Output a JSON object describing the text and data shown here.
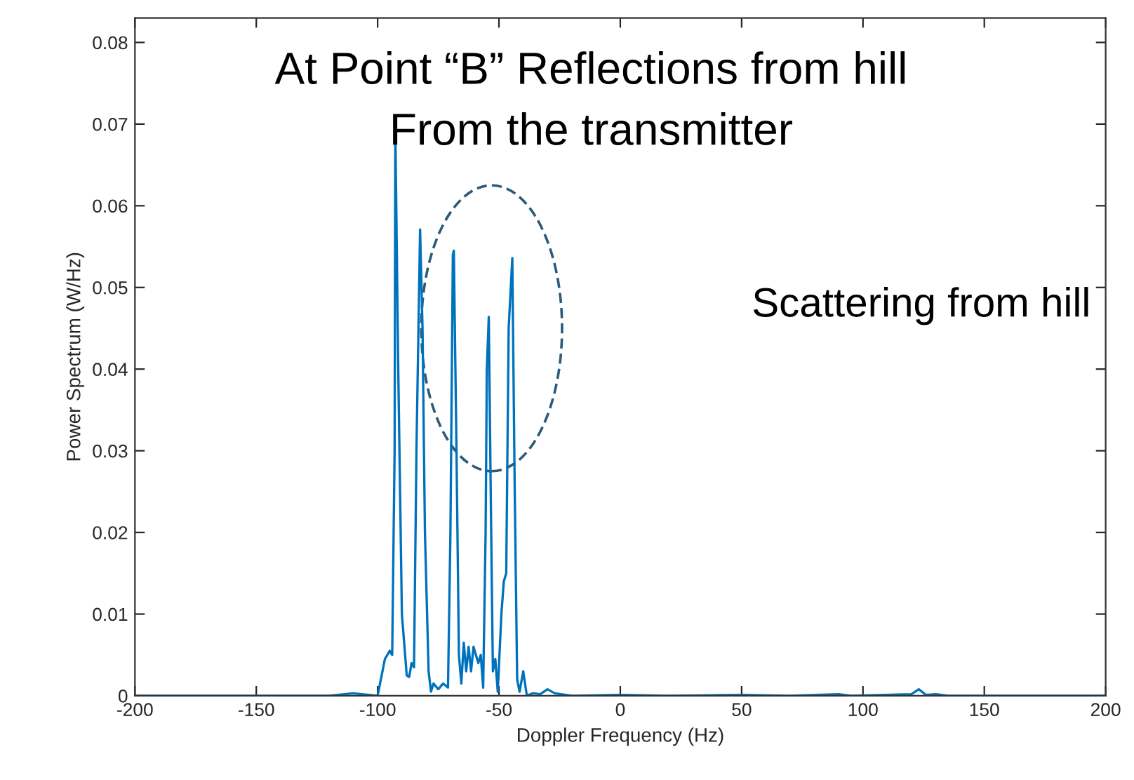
{
  "chart_data": {
    "type": "line",
    "xlabel": "Doppler Frequency (Hz)",
    "ylabel": "Power Spectrum (W/Hz)",
    "xlim": [
      -200,
      200
    ],
    "ylim": [
      0,
      0.083
    ],
    "xticks": [
      -200,
      -150,
      -100,
      -50,
      0,
      50,
      100,
      150,
      200
    ],
    "yticks": [
      0,
      0.01,
      0.02,
      0.03,
      0.04,
      0.05,
      0.06,
      0.07,
      0.08
    ],
    "grid": false,
    "legend": false,
    "annotations": [
      "At Point “B” Reflections from hill",
      "From the transmitter",
      "Scattering from hill"
    ],
    "series": [
      {
        "color": "#0072bd",
        "x": [
          -200,
          -120,
          -110,
          -100,
          -97,
          -95,
          -94,
          -93,
          -92.7,
          -91.5,
          -90,
          -88,
          -87,
          -86,
          -85,
          -84,
          -82.5,
          -81.5,
          -80.5,
          -79,
          -78,
          -77,
          -75,
          -73,
          -71,
          -70,
          -69,
          -68.6,
          -67.5,
          -66.5,
          -65.5,
          -64.5,
          -63.5,
          -62.5,
          -61.5,
          -60.5,
          -59.5,
          -58.5,
          -57.5,
          -56.5,
          -55.5,
          -55,
          -54.2,
          -53.2,
          -52.5,
          -51.5,
          -50.5,
          -49,
          -48,
          -47,
          -46,
          -44.5,
          -43.5,
          -42.5,
          -41.5,
          -40,
          -38.5,
          -36,
          -33,
          -30,
          -27,
          -20,
          0,
          20,
          50,
          70,
          90,
          95,
          120,
          123,
          126,
          130,
          135,
          200
        ],
        "values": [
          0,
          0,
          0.0003,
          0,
          0.0045,
          0.0055,
          0.005,
          0.03,
          0.0694,
          0.04,
          0.01,
          0.0025,
          0.0023,
          0.004,
          0.0035,
          0.03,
          0.0571,
          0.045,
          0.02,
          0.003,
          0.0005,
          0.0015,
          0.0008,
          0.0015,
          0.001,
          0.02,
          0.054,
          0.0545,
          0.03,
          0.005,
          0.0015,
          0.0065,
          0.003,
          0.006,
          0.003,
          0.006,
          0.005,
          0.004,
          0.005,
          0.001,
          0.02,
          0.04,
          0.0464,
          0.02,
          0.003,
          0.0045,
          0.0005,
          0.01,
          0.014,
          0.015,
          0.045,
          0.0536,
          0.025,
          0.002,
          0.0005,
          0.003,
          0,
          0.0003,
          0.0002,
          0.0008,
          0.0003,
          0,
          0.0001,
          0,
          0.0001,
          0,
          0.0002,
          0,
          0.0002,
          0.0008,
          0.0001,
          0.0002,
          0,
          0
        ]
      }
    ]
  }
}
